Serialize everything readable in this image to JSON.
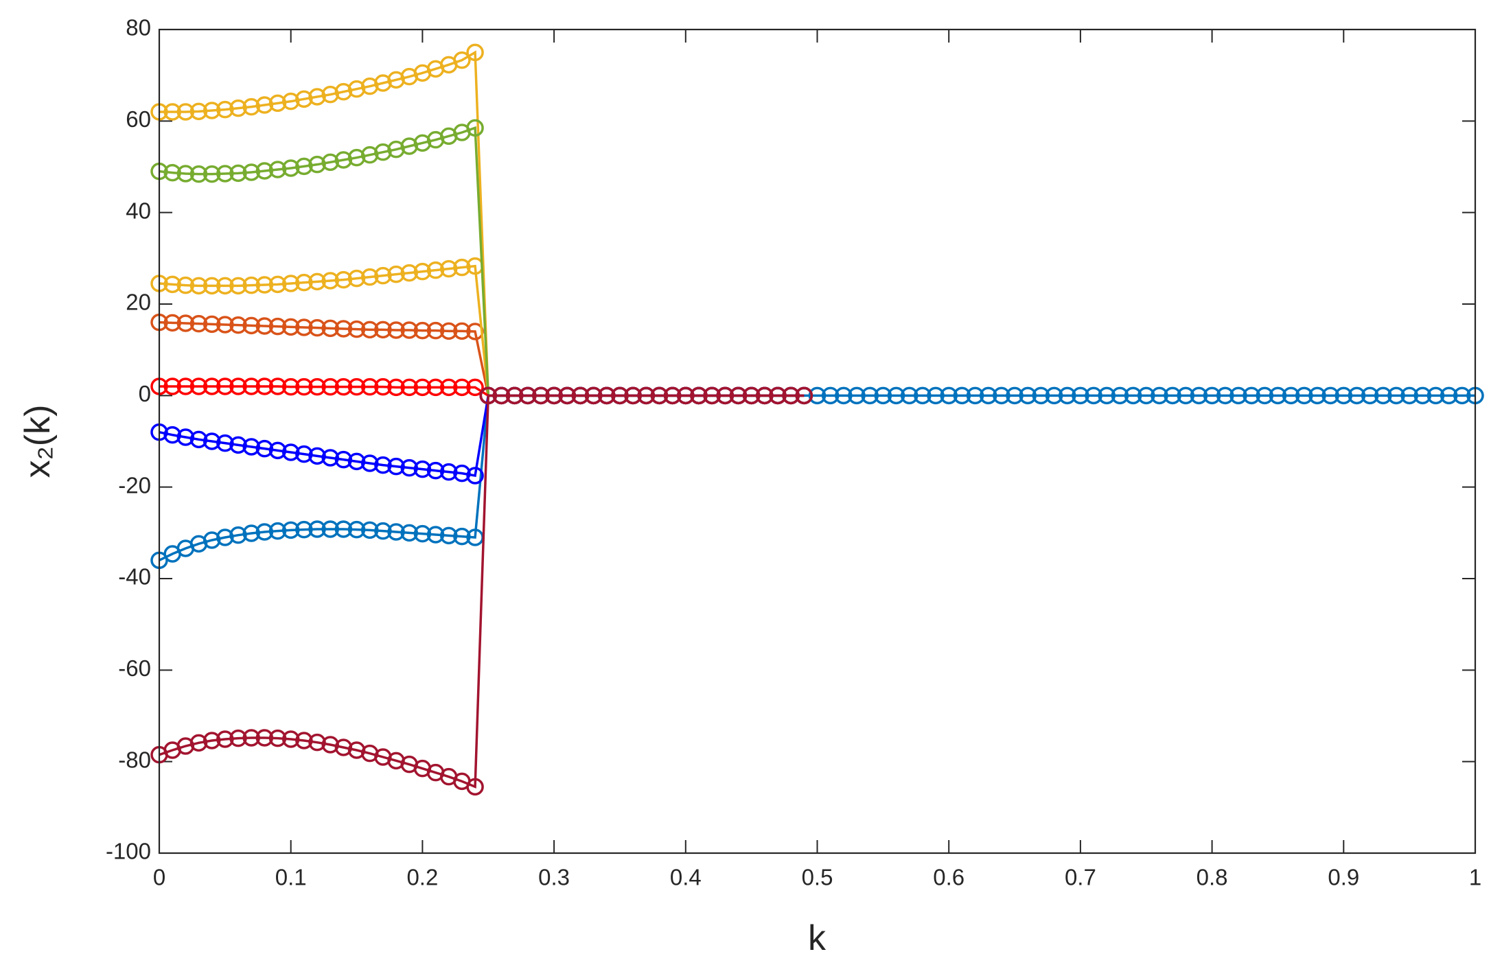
{
  "chart_data": {
    "type": "line",
    "xlabel": "k",
    "ylabel": "x₂(k)",
    "grid": false,
    "box": true,
    "xlim": [
      0,
      1
    ],
    "xticks": [
      0,
      0.1,
      0.2,
      0.3,
      0.4,
      0.5,
      0.6,
      0.7,
      0.8,
      0.9,
      1
    ],
    "ylim": [
      -100,
      80
    ],
    "yticks": [
      -100,
      -80,
      -60,
      -40,
      -20,
      0,
      20,
      40,
      60,
      80
    ],
    "x": [
      0,
      0.01,
      0.02,
      0.03,
      0.04,
      0.05,
      0.06,
      0.07,
      0.08,
      0.09,
      0.1,
      0.11,
      0.12,
      0.13,
      0.14,
      0.15,
      0.16,
      0.17,
      0.18,
      0.19,
      0.2,
      0.21,
      0.22,
      0.23,
      0.24,
      0.25,
      0.26,
      0.27,
      0.28,
      0.29,
      0.3,
      0.31,
      0.32,
      0.33,
      0.34,
      0.35,
      0.36,
      0.37,
      0.38,
      0.39,
      0.4,
      0.41,
      0.42,
      0.43,
      0.44,
      0.45,
      0.46,
      0.47,
      0.48,
      0.49,
      0.5,
      0.51,
      0.52,
      0.53,
      0.54,
      0.55,
      0.56,
      0.57,
      0.58,
      0.59,
      0.6,
      0.61,
      0.62,
      0.63,
      0.64,
      0.65,
      0.66,
      0.67,
      0.68,
      0.69,
      0.7,
      0.71,
      0.72,
      0.73,
      0.74,
      0.75,
      0.76,
      0.77,
      0.78,
      0.79,
      0.8,
      0.81,
      0.82,
      0.83,
      0.84,
      0.85,
      0.86,
      0.87,
      0.88,
      0.89,
      0.9,
      0.91,
      0.92,
      0.93,
      0.94,
      0.95,
      0.96,
      0.97,
      0.98,
      0.99,
      1
    ],
    "series": [
      {
        "color": "#0072BD",
        "values": [
          -36,
          -34.6,
          -33.4,
          -32.4,
          -31.6,
          -31,
          -30.5,
          -30.1,
          -29.8,
          -29.6,
          -29.4,
          -29.3,
          -29.2,
          -29.2,
          -29.2,
          -29.3,
          -29.4,
          -29.6,
          -29.8,
          -30,
          -30.2,
          -30.4,
          -30.6,
          -30.8,
          -31,
          0,
          0,
          0,
          0,
          0,
          0,
          0,
          0,
          0,
          0,
          0,
          0,
          0,
          0,
          0,
          0,
          0,
          0,
          0,
          0,
          0,
          0,
          0,
          0,
          0,
          0,
          0,
          0,
          0,
          0,
          0,
          0,
          0,
          0,
          0,
          0,
          0,
          0,
          0,
          0,
          0,
          0,
          0,
          0,
          0,
          0,
          0,
          0,
          0,
          0,
          0,
          0,
          0,
          0,
          0,
          0,
          0,
          0,
          0,
          0,
          0,
          0,
          0,
          0,
          0,
          0,
          0,
          0,
          0,
          0,
          0,
          0,
          0,
          0,
          0,
          0
        ]
      },
      {
        "color": "#D95319",
        "values": [
          16,
          15.9,
          15.8,
          15.7,
          15.6,
          15.5,
          15.4,
          15.3,
          15.2,
          15.1,
          15,
          14.9,
          14.8,
          14.7,
          14.6,
          14.5,
          14.4,
          14.4,
          14.3,
          14.3,
          14.2,
          14.2,
          14.1,
          14.1,
          14,
          0,
          0,
          0,
          0,
          0,
          0,
          0,
          0,
          0,
          0,
          0,
          0,
          0,
          0,
          0,
          0,
          0,
          0,
          0,
          0,
          0,
          0,
          0,
          0,
          0,
          null,
          null,
          null,
          null,
          null,
          null,
          null,
          null,
          null,
          null,
          null,
          null,
          null,
          null,
          null,
          null,
          null,
          null,
          null,
          null,
          null,
          null,
          null,
          null,
          null,
          null,
          null,
          null,
          null,
          null,
          null,
          null,
          null,
          null,
          null,
          null,
          null,
          null,
          null,
          null,
          null,
          null,
          null,
          null,
          null,
          null,
          null,
          null,
          null,
          null,
          null
        ]
      },
      {
        "color": "#EDB120",
        "values": [
          24.5,
          24.3,
          24.1,
          24,
          24,
          24,
          24,
          24.1,
          24.2,
          24.3,
          24.5,
          24.7,
          24.9,
          25.1,
          25.3,
          25.6,
          25.9,
          26.2,
          26.5,
          26.8,
          27.1,
          27.4,
          27.7,
          28,
          28.3,
          0,
          0,
          0,
          0,
          0,
          0,
          0,
          0,
          0,
          0,
          0,
          0,
          0,
          0,
          0,
          0,
          0,
          0,
          0,
          0,
          0,
          0,
          0,
          0,
          0,
          null,
          null,
          null,
          null,
          null,
          null,
          null,
          null,
          null,
          null,
          null,
          null,
          null,
          null,
          null,
          null,
          null,
          null,
          null,
          null,
          null,
          null,
          null,
          null,
          null,
          null,
          null,
          null,
          null,
          null,
          null,
          null,
          null,
          null,
          null,
          null,
          null,
          null,
          null,
          null,
          null,
          null,
          null,
          null,
          null,
          null,
          null,
          null,
          null,
          null,
          null
        ]
      },
      {
        "color": "#EDB120",
        "values": [
          62,
          62,
          62,
          62.1,
          62.3,
          62.5,
          62.8,
          63.1,
          63.5,
          63.9,
          64.3,
          64.8,
          65.3,
          65.8,
          66.4,
          67,
          67.6,
          68.3,
          69,
          69.7,
          70.5,
          71.4,
          72.3,
          73.3,
          75,
          0,
          0,
          0,
          0,
          0,
          0,
          0,
          0,
          0,
          0,
          0,
          0,
          0,
          0,
          0,
          0,
          0,
          0,
          0,
          0,
          0,
          0,
          0,
          0,
          0,
          null,
          null,
          null,
          null,
          null,
          null,
          null,
          null,
          null,
          null,
          null,
          null,
          null,
          null,
          null,
          null,
          null,
          null,
          null,
          null,
          null,
          null,
          null,
          null,
          null,
          null,
          null,
          null,
          null,
          null,
          null,
          null,
          null,
          null,
          null,
          null,
          null,
          null,
          null,
          null,
          null,
          null,
          null,
          null,
          null,
          null,
          null,
          null,
          null,
          null,
          null
        ]
      },
      {
        "color": "#77AC30",
        "values": [
          49,
          48.7,
          48.5,
          48.4,
          48.4,
          48.5,
          48.6,
          48.8,
          49.1,
          49.4,
          49.7,
          50.1,
          50.5,
          51,
          51.5,
          52,
          52.6,
          53.2,
          53.8,
          54.5,
          55.2,
          55.9,
          56.7,
          57.5,
          58.5,
          0,
          0,
          0,
          0,
          0,
          0,
          0,
          0,
          0,
          0,
          0,
          0,
          0,
          0,
          0,
          0,
          0,
          0,
          0,
          0,
          0,
          0,
          0,
          0,
          0,
          null,
          null,
          null,
          null,
          null,
          null,
          null,
          null,
          null,
          null,
          null,
          null,
          null,
          null,
          null,
          null,
          null,
          null,
          null,
          null,
          null,
          null,
          null,
          null,
          null,
          null,
          null,
          null,
          null,
          null,
          null,
          null,
          null,
          null,
          null,
          null,
          null,
          null,
          null,
          null,
          null,
          null,
          null,
          null,
          null,
          null,
          null,
          null,
          null,
          null,
          null
        ]
      },
      {
        "color": "#FF0000",
        "values": [
          2,
          2,
          2,
          2,
          2,
          2,
          2,
          2,
          2,
          2,
          1.9,
          1.9,
          1.9,
          1.9,
          1.9,
          1.9,
          1.9,
          1.9,
          1.8,
          1.8,
          1.8,
          1.8,
          1.8,
          1.8,
          1.8,
          0,
          0,
          0,
          0,
          0,
          0,
          0,
          0,
          0,
          0,
          0,
          0,
          0,
          0,
          0,
          0,
          0,
          0,
          0,
          0,
          0,
          0,
          0,
          0,
          0,
          null,
          null,
          null,
          null,
          null,
          null,
          null,
          null,
          null,
          null,
          null,
          null,
          null,
          null,
          null,
          null,
          null,
          null,
          null,
          null,
          null,
          null,
          null,
          null,
          null,
          null,
          null,
          null,
          null,
          null,
          null,
          null,
          null,
          null,
          null,
          null,
          null,
          null,
          null,
          null,
          null,
          null,
          null,
          null,
          null,
          null,
          null,
          null,
          null,
          null,
          null
        ]
      },
      {
        "color": "#0000FF",
        "values": [
          -8,
          -8.6,
          -9.1,
          -9.6,
          -10,
          -10.4,
          -10.8,
          -11.2,
          -11.6,
          -12,
          -12.4,
          -12.8,
          -13.2,
          -13.6,
          -14,
          -14.4,
          -14.8,
          -15.2,
          -15.5,
          -15.8,
          -16.1,
          -16.4,
          -16.7,
          -17,
          -17.5,
          0,
          0,
          0,
          0,
          0,
          0,
          0,
          0,
          0,
          0,
          0,
          0,
          0,
          0,
          0,
          0,
          0,
          0,
          0,
          0,
          0,
          0,
          0,
          0,
          0,
          null,
          null,
          null,
          null,
          null,
          null,
          null,
          null,
          null,
          null,
          null,
          null,
          null,
          null,
          null,
          null,
          null,
          null,
          null,
          null,
          null,
          null,
          null,
          null,
          null,
          null,
          null,
          null,
          null,
          null,
          null,
          null,
          null,
          null,
          null,
          null,
          null,
          null,
          null,
          null,
          null,
          null,
          null,
          null,
          null,
          null,
          null,
          null,
          null,
          null,
          null
        ]
      },
      {
        "color": "#A2142F",
        "values": [
          -78.5,
          -77.5,
          -76.6,
          -75.9,
          -75.4,
          -75.1,
          -74.9,
          -74.8,
          -74.8,
          -74.9,
          -75.1,
          -75.4,
          -75.8,
          -76.3,
          -76.9,
          -77.5,
          -78.2,
          -79,
          -79.8,
          -80.6,
          -81.5,
          -82.4,
          -83.3,
          -84.3,
          -85.5,
          0,
          0,
          0,
          0,
          0,
          0,
          0,
          0,
          0,
          0,
          0,
          0,
          0,
          0,
          0,
          0,
          0,
          0,
          0,
          0,
          0,
          0,
          0,
          0,
          0,
          null,
          null,
          null,
          null,
          null,
          null,
          null,
          null,
          null,
          null,
          null,
          null,
          null,
          null,
          null,
          null,
          null,
          null,
          null,
          null,
          null,
          null,
          null,
          null,
          null,
          null,
          null,
          null,
          null,
          null,
          null,
          null,
          null,
          null,
          null,
          null,
          null,
          null,
          null,
          null,
          null,
          null,
          null,
          null,
          null,
          null,
          null,
          null,
          null,
          null,
          null
        ]
      }
    ]
  }
}
